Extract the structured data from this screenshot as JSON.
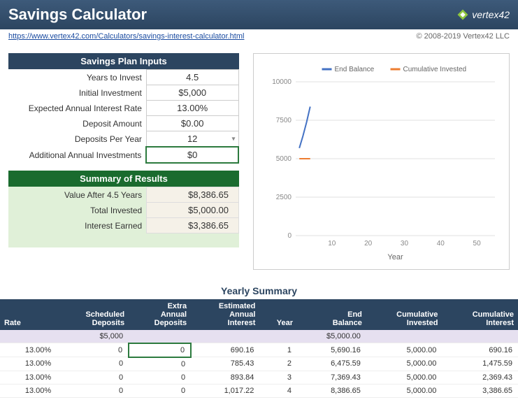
{
  "header": {
    "title": "Savings Calculator",
    "logo_text": "vertex42"
  },
  "subhead": {
    "url": "https://www.vertex42.com/Calculators/savings-interest-calculator.html",
    "copyright": "© 2008-2019 Vertex42 LLC"
  },
  "inputs": {
    "section_title": "Savings Plan Inputs",
    "rows": [
      {
        "label": "Years to Invest",
        "value": "4.5"
      },
      {
        "label": "Initial Investment",
        "value": "$5,000"
      },
      {
        "label": "Expected Annual Interest Rate",
        "value": "13.00%"
      },
      {
        "label": "Deposit Amount",
        "value": "$0.00"
      },
      {
        "label": "Deposits Per Year",
        "value": "12",
        "dropdown": true
      },
      {
        "label": "Additional Annual Investments",
        "value": "$0",
        "selected": true
      }
    ]
  },
  "results": {
    "section_title": "Summary of Results",
    "rows": [
      {
        "label": "Value After 4.5 Years",
        "value": "$8,386.65"
      },
      {
        "label": "Total Invested",
        "value": "$5,000.00"
      },
      {
        "label": "Interest Earned",
        "value": "$3,386.65"
      }
    ]
  },
  "chart": {
    "type": "line",
    "legend": [
      {
        "label": "End Balance",
        "color": "#4472c4"
      },
      {
        "label": "Cumulative Invested",
        "color": "#ed7d31"
      }
    ],
    "y_ticks": [
      0,
      2500,
      5000,
      7500,
      10000
    ],
    "x_ticks": [
      10,
      20,
      30,
      40,
      50
    ],
    "x_label": "Year",
    "xlim": [
      0,
      55
    ],
    "ylim": [
      0,
      10000
    ],
    "background_color": "#ffffff",
    "grid_color": "#e0e0e0",
    "tick_fontsize": 10,
    "label_fontsize": 11,
    "legend_fontsize": 10,
    "line_width": 2,
    "series": [
      {
        "color": "#4472c4",
        "points": [
          [
            1,
            5690
          ],
          [
            2,
            6476
          ],
          [
            3,
            7369
          ],
          [
            4,
            8387
          ]
        ]
      },
      {
        "color": "#ed7d31",
        "points": [
          [
            1,
            5000
          ],
          [
            2,
            5000
          ],
          [
            3,
            5000
          ],
          [
            4,
            5000
          ]
        ]
      }
    ]
  },
  "yearly": {
    "title": "Yearly Summary",
    "headers": [
      "Rate",
      "Scheduled Deposits",
      "Extra Annual Deposits",
      "Estimated Annual Interest",
      "Year",
      "End Balance",
      "Cumulative Invested",
      "Cumulative Interest"
    ],
    "init_row": [
      "",
      "$5,000",
      "",
      "",
      "",
      "$5,000.00",
      "",
      ""
    ],
    "rows": [
      [
        "13.00%",
        "0",
        "0",
        "690.16",
        "1",
        "5,690.16",
        "5,000.00",
        "690.16"
      ],
      [
        "13.00%",
        "0",
        "0",
        "785.43",
        "2",
        "6,475.59",
        "5,000.00",
        "1,475.59"
      ],
      [
        "13.00%",
        "0",
        "0",
        "893.84",
        "3",
        "7,369.43",
        "5,000.00",
        "2,369.43"
      ],
      [
        "13.00%",
        "0",
        "0",
        "1,017.22",
        "4",
        "8,386.65",
        "5,000.00",
        "3,386.65"
      ]
    ],
    "selected_cell": {
      "row": 0,
      "col": 2
    }
  }
}
